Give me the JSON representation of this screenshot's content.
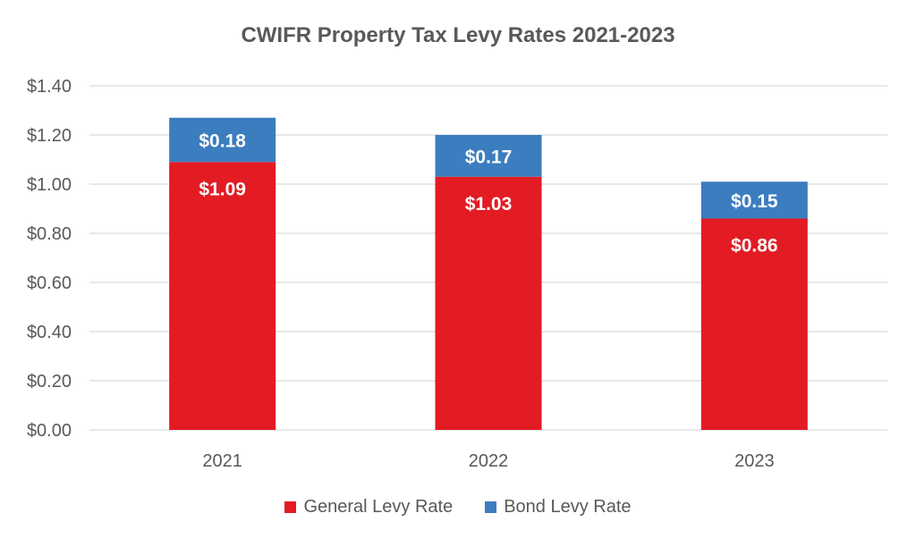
{
  "chart_data": {
    "type": "bar",
    "stacked": true,
    "title": "CWIFR Property Tax Levy Rates 2021-2023",
    "xlabel": "",
    "ylabel": "",
    "categories": [
      "2021",
      "2022",
      "2023"
    ],
    "ylim": [
      0,
      1.4
    ],
    "yticks": [
      0,
      0.2,
      0.4,
      0.6,
      0.8,
      1.0,
      1.2,
      1.4
    ],
    "ytick_labels": [
      "$0.00",
      "$0.20",
      "$0.40",
      "$0.60",
      "$0.80",
      "$1.00",
      "$1.20",
      "$1.40"
    ],
    "grid": true,
    "legend_position": "bottom",
    "series": [
      {
        "name": "General Levy Rate",
        "color": "#e31b23",
        "values": [
          1.09,
          1.03,
          0.86
        ],
        "labels": [
          "$1.09",
          "$1.03",
          "$0.86"
        ]
      },
      {
        "name": "Bond Levy Rate",
        "color": "#3b7dbf",
        "values": [
          0.18,
          0.17,
          0.15
        ],
        "labels": [
          "$0.18",
          "$0.17",
          "$0.15"
        ]
      }
    ]
  }
}
